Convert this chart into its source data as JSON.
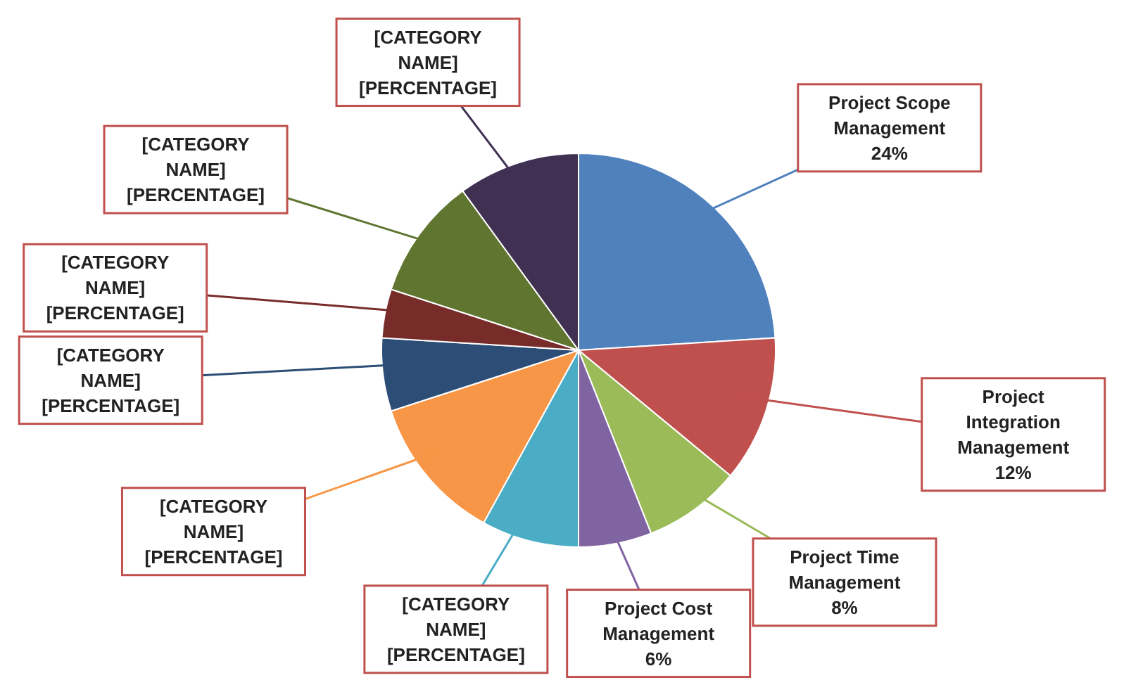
{
  "chart_data": {
    "type": "pie",
    "categories": [
      "Project Scope Management",
      "Project Integration Management",
      "Project Time Management",
      "Project Cost Management",
      "[CATEGORY NAME]",
      "[CATEGORY NAME]",
      "[CATEGORY NAME]",
      "[CATEGORY NAME]",
      "[CATEGORY NAME]",
      "[CATEGORY NAME]"
    ],
    "values": [
      24,
      12,
      8,
      6,
      8,
      12,
      6,
      4,
      10,
      10
    ],
    "value_labels": [
      "24%",
      "12%",
      "8%",
      "6%",
      "[PERCENTAGE]",
      "[PERCENTAGE]",
      "[PERCENTAGE]",
      "[PERCENTAGE]",
      "[PERCENTAGE]",
      "[PERCENTAGE]"
    ],
    "colors": [
      "#4f81bd",
      "#c0504d",
      "#9bbb59",
      "#8064a2",
      "#4bacc6",
      "#f79646",
      "#2c4d75",
      "#772c2a",
      "#5f7530",
      "#403152"
    ]
  }
}
